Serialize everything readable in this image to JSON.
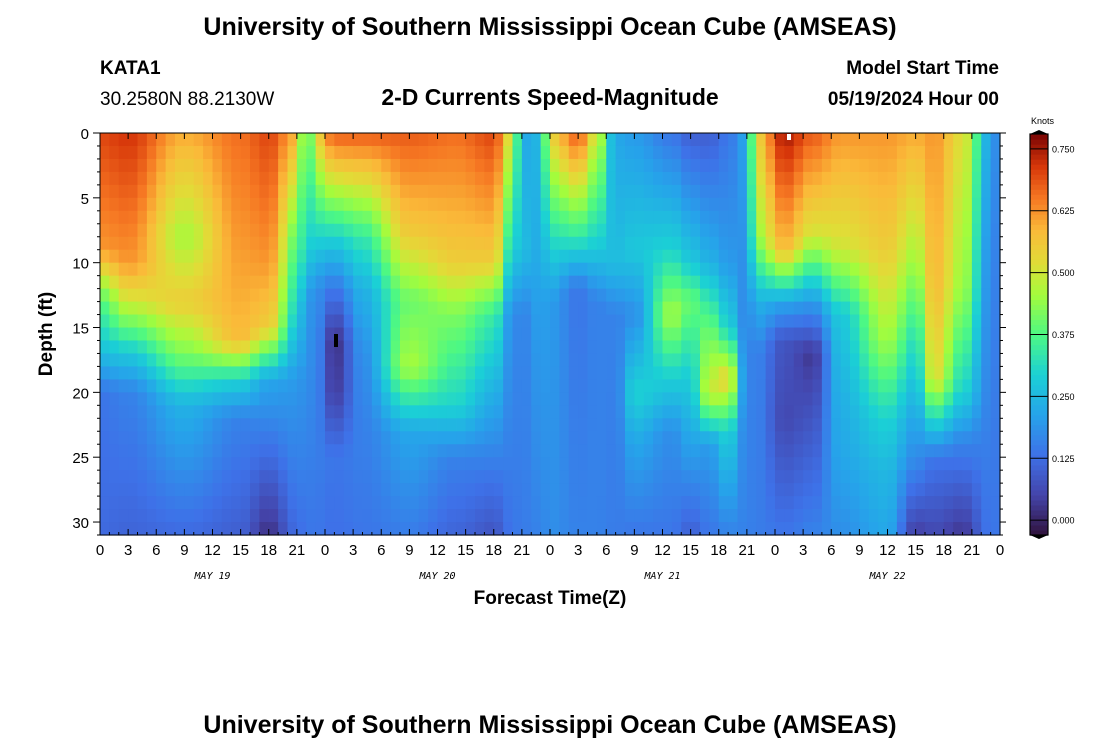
{
  "page": {
    "title": "University of Southern Mississippi Ocean Cube (AMSEAS)",
    "station_id": "KATA1",
    "coordinates": "30.2580N  88.2130W",
    "subtitle": "2-D Currents Speed-Magnitude",
    "model_start_label": "Model Start Time",
    "model_start_value": "05/19/2024 Hour 00",
    "bottom_title": "University of Southern Mississippi Ocean Cube (AMSEAS)"
  },
  "chart_data": {
    "type": "heatmap",
    "title": "2-D Currents Speed-Magnitude",
    "xlabel": "Forecast Time(Z)",
    "ylabel": "Depth (ft)",
    "xlim": [
      0,
      96
    ],
    "ylim": [
      31,
      0
    ],
    "x_ticks": [
      0,
      3,
      6,
      9,
      12,
      15,
      18,
      21,
      24,
      27,
      30,
      33,
      36,
      39,
      42,
      45,
      48,
      51,
      54,
      57,
      60,
      63,
      66,
      69,
      72,
      75,
      78,
      81,
      84,
      87,
      90,
      93,
      96
    ],
    "x_tick_labels": [
      "0",
      "3",
      "6",
      "9",
      "12",
      "15",
      "18",
      "21",
      "0",
      "3",
      "6",
      "9",
      "12",
      "15",
      "18",
      "21",
      "0",
      "3",
      "6",
      "9",
      "12",
      "15",
      "18",
      "21",
      "0",
      "3",
      "6",
      "9",
      "12",
      "15",
      "18",
      "21",
      "0"
    ],
    "y_ticks": [
      0,
      5,
      10,
      15,
      20,
      25,
      30
    ],
    "y_tick_labels": [
      "0",
      "5",
      "10",
      "15",
      "20",
      "25",
      "30"
    ],
    "date_labels": [
      {
        "x": 12,
        "text": "MAY 19"
      },
      {
        "x": 36,
        "text": "MAY 20"
      },
      {
        "x": 60,
        "text": "MAY 21"
      },
      {
        "x": 84,
        "text": "MAY 22"
      }
    ],
    "colorbar": {
      "title": "Knots",
      "range": [
        -0.03,
        0.78
      ],
      "ticks": [
        0.0,
        0.125,
        0.25,
        0.375,
        0.5,
        0.625,
        0.75
      ],
      "tick_labels": [
        "0.000",
        "0.125",
        "0.250",
        "0.375",
        "0.500",
        "0.625",
        "0.750"
      ]
    },
    "keyframes": [
      {
        "t": 0,
        "profile": [
          [
            0,
            0.7
          ],
          [
            9,
            0.62
          ],
          [
            13,
            0.38
          ],
          [
            17,
            0.26
          ],
          [
            20,
            0.14
          ],
          [
            31,
            0.12
          ]
        ]
      },
      {
        "t": 3,
        "profile": [
          [
            0,
            0.72
          ],
          [
            10,
            0.62
          ],
          [
            13,
            0.5
          ],
          [
            17,
            0.28
          ],
          [
            20,
            0.16
          ],
          [
            31,
            0.11
          ]
        ]
      },
      {
        "t": 9,
        "profile": [
          [
            0,
            0.6
          ],
          [
            8,
            0.46
          ],
          [
            13,
            0.55
          ],
          [
            17,
            0.42
          ],
          [
            21,
            0.24
          ],
          [
            31,
            0.12
          ]
        ]
      },
      {
        "t": 15,
        "profile": [
          [
            0,
            0.66
          ],
          [
            8,
            0.62
          ],
          [
            16,
            0.58
          ],
          [
            19,
            0.3
          ],
          [
            22,
            0.16
          ],
          [
            31,
            0.1
          ]
        ]
      },
      {
        "t": 18,
        "profile": [
          [
            0,
            0.7
          ],
          [
            10,
            0.62
          ],
          [
            15,
            0.55
          ],
          [
            19,
            0.22
          ],
          [
            25,
            0.12
          ],
          [
            31,
            0.02
          ]
        ]
      },
      {
        "t": 21,
        "profile": [
          [
            0,
            0.6
          ],
          [
            8,
            0.4
          ],
          [
            14,
            0.3
          ],
          [
            19,
            0.2
          ],
          [
            31,
            0.12
          ]
        ]
      },
      {
        "t": 22,
        "profile": [
          [
            0,
            0.3
          ],
          [
            9,
            0.3
          ],
          [
            13,
            0.2
          ],
          [
            31,
            0.14
          ]
        ]
      },
      {
        "t": 23,
        "profile": [
          [
            0,
            0.55
          ],
          [
            8,
            0.3
          ],
          [
            12,
            0.18
          ],
          [
            31,
            0.14
          ]
        ]
      },
      {
        "t": 25,
        "profile": [
          [
            0,
            0.68
          ],
          [
            8,
            0.3
          ],
          [
            12,
            0.14
          ],
          [
            16,
            0.02
          ],
          [
            20,
            0.04
          ],
          [
            25,
            0.14
          ],
          [
            31,
            0.13
          ]
        ]
      },
      {
        "t": 28,
        "profile": [
          [
            0,
            0.68
          ],
          [
            8,
            0.34
          ],
          [
            12,
            0.24
          ],
          [
            17,
            0.18
          ],
          [
            22,
            0.16
          ],
          [
            31,
            0.14
          ]
        ]
      },
      {
        "t": 33,
        "profile": [
          [
            0,
            0.68
          ],
          [
            8,
            0.55
          ],
          [
            13,
            0.4
          ],
          [
            18,
            0.46
          ],
          [
            23,
            0.22
          ],
          [
            31,
            0.15
          ]
        ]
      },
      {
        "t": 38,
        "profile": [
          [
            0,
            0.66
          ],
          [
            10,
            0.55
          ],
          [
            14,
            0.42
          ],
          [
            21,
            0.3
          ],
          [
            25,
            0.16
          ],
          [
            31,
            0.11
          ]
        ]
      },
      {
        "t": 42,
        "profile": [
          [
            0,
            0.7
          ],
          [
            10,
            0.55
          ],
          [
            14,
            0.35
          ],
          [
            20,
            0.24
          ],
          [
            25,
            0.16
          ],
          [
            31,
            0.08
          ]
        ]
      },
      {
        "t": 44,
        "profile": [
          [
            0,
            0.5
          ],
          [
            9,
            0.3
          ],
          [
            14,
            0.18
          ],
          [
            31,
            0.14
          ]
        ]
      },
      {
        "t": 45,
        "profile": [
          [
            0,
            0.22
          ],
          [
            9,
            0.26
          ],
          [
            14,
            0.16
          ],
          [
            31,
            0.15
          ]
        ]
      },
      {
        "t": 47,
        "profile": [
          [
            0,
            0.25
          ],
          [
            31,
            0.16
          ]
        ]
      },
      {
        "t": 48,
        "profile": [
          [
            0,
            0.55
          ],
          [
            8,
            0.32
          ],
          [
            13,
            0.2
          ],
          [
            31,
            0.18
          ]
        ]
      },
      {
        "t": 51,
        "profile": [
          [
            0,
            0.68
          ],
          [
            8,
            0.34
          ],
          [
            12,
            0.14
          ],
          [
            31,
            0.16
          ]
        ]
      },
      {
        "t": 53,
        "profile": [
          [
            0,
            0.5
          ],
          [
            9,
            0.28
          ],
          [
            13,
            0.16
          ],
          [
            31,
            0.16
          ]
        ]
      },
      {
        "t": 55,
        "profile": [
          [
            0,
            0.22
          ],
          [
            10,
            0.26
          ],
          [
            14,
            0.16
          ],
          [
            31,
            0.15
          ]
        ]
      },
      {
        "t": 57,
        "profile": [
          [
            0,
            0.2
          ],
          [
            9,
            0.28
          ],
          [
            14,
            0.18
          ],
          [
            20,
            0.3
          ],
          [
            24,
            0.22
          ],
          [
            31,
            0.14
          ]
        ]
      },
      {
        "t": 61,
        "profile": [
          [
            0,
            0.14
          ],
          [
            9,
            0.3
          ],
          [
            14,
            0.46
          ],
          [
            18,
            0.32
          ],
          [
            23,
            0.18
          ],
          [
            31,
            0.14
          ]
        ]
      },
      {
        "t": 63,
        "profile": [
          [
            0,
            0.1
          ],
          [
            10,
            0.28
          ],
          [
            13,
            0.4
          ],
          [
            18,
            0.3
          ],
          [
            25,
            0.2
          ],
          [
            31,
            0.1
          ]
        ]
      },
      {
        "t": 65,
        "profile": [
          [
            0,
            0.1
          ],
          [
            10,
            0.24
          ],
          [
            15,
            0.4
          ],
          [
            20,
            0.5
          ],
          [
            24,
            0.2
          ],
          [
            31,
            0.14
          ]
        ]
      },
      {
        "t": 67,
        "profile": [
          [
            0,
            0.14
          ],
          [
            10,
            0.2
          ],
          [
            15,
            0.3
          ],
          [
            19,
            0.55
          ],
          [
            23,
            0.3
          ],
          [
            31,
            0.16
          ]
        ]
      },
      {
        "t": 69,
        "profile": [
          [
            0,
            0.22
          ],
          [
            10,
            0.18
          ],
          [
            14,
            0.16
          ],
          [
            31,
            0.16
          ]
        ]
      },
      {
        "t": 70,
        "profile": [
          [
            0,
            0.55
          ],
          [
            8,
            0.45
          ],
          [
            13,
            0.24
          ],
          [
            17,
            0.16
          ],
          [
            31,
            0.15
          ]
        ]
      },
      {
        "t": 73,
        "profile": [
          [
            0,
            0.75
          ],
          [
            9,
            0.58
          ],
          [
            13,
            0.22
          ],
          [
            16,
            0.08
          ],
          [
            22,
            0.06
          ],
          [
            31,
            0.14
          ]
        ]
      },
      {
        "t": 76,
        "profile": [
          [
            0,
            0.68
          ],
          [
            8,
            0.5
          ],
          [
            13,
            0.2
          ],
          [
            17,
            0.03
          ],
          [
            22,
            0.08
          ],
          [
            31,
            0.16
          ]
        ]
      },
      {
        "t": 79,
        "profile": [
          [
            0,
            0.62
          ],
          [
            9,
            0.5
          ],
          [
            14,
            0.28
          ],
          [
            20,
            0.24
          ],
          [
            25,
            0.22
          ],
          [
            31,
            0.18
          ]
        ]
      },
      {
        "t": 84,
        "profile": [
          [
            0,
            0.62
          ],
          [
            9,
            0.55
          ],
          [
            16,
            0.45
          ],
          [
            22,
            0.3
          ],
          [
            26,
            0.25
          ],
          [
            31,
            0.22
          ]
        ]
      },
      {
        "t": 87,
        "profile": [
          [
            0,
            0.6
          ],
          [
            10,
            0.45
          ],
          [
            16,
            0.32
          ],
          [
            22,
            0.22
          ],
          [
            26,
            0.16
          ],
          [
            31,
            0.04
          ]
        ]
      },
      {
        "t": 89,
        "profile": [
          [
            0,
            0.62
          ],
          [
            12,
            0.58
          ],
          [
            19,
            0.52
          ],
          [
            22,
            0.32
          ],
          [
            25,
            0.14
          ],
          [
            31,
            0.06
          ]
        ]
      },
      {
        "t": 92,
        "profile": [
          [
            0,
            0.52
          ],
          [
            12,
            0.45
          ],
          [
            20,
            0.3
          ],
          [
            24,
            0.16
          ],
          [
            31,
            0.03
          ]
        ]
      },
      {
        "t": 95,
        "profile": [
          [
            0,
            0.22
          ],
          [
            10,
            0.18
          ],
          [
            31,
            0.14
          ]
        ]
      },
      {
        "t": 96,
        "profile": [
          [
            0,
            0.14
          ],
          [
            31,
            0.14
          ]
        ]
      }
    ]
  }
}
